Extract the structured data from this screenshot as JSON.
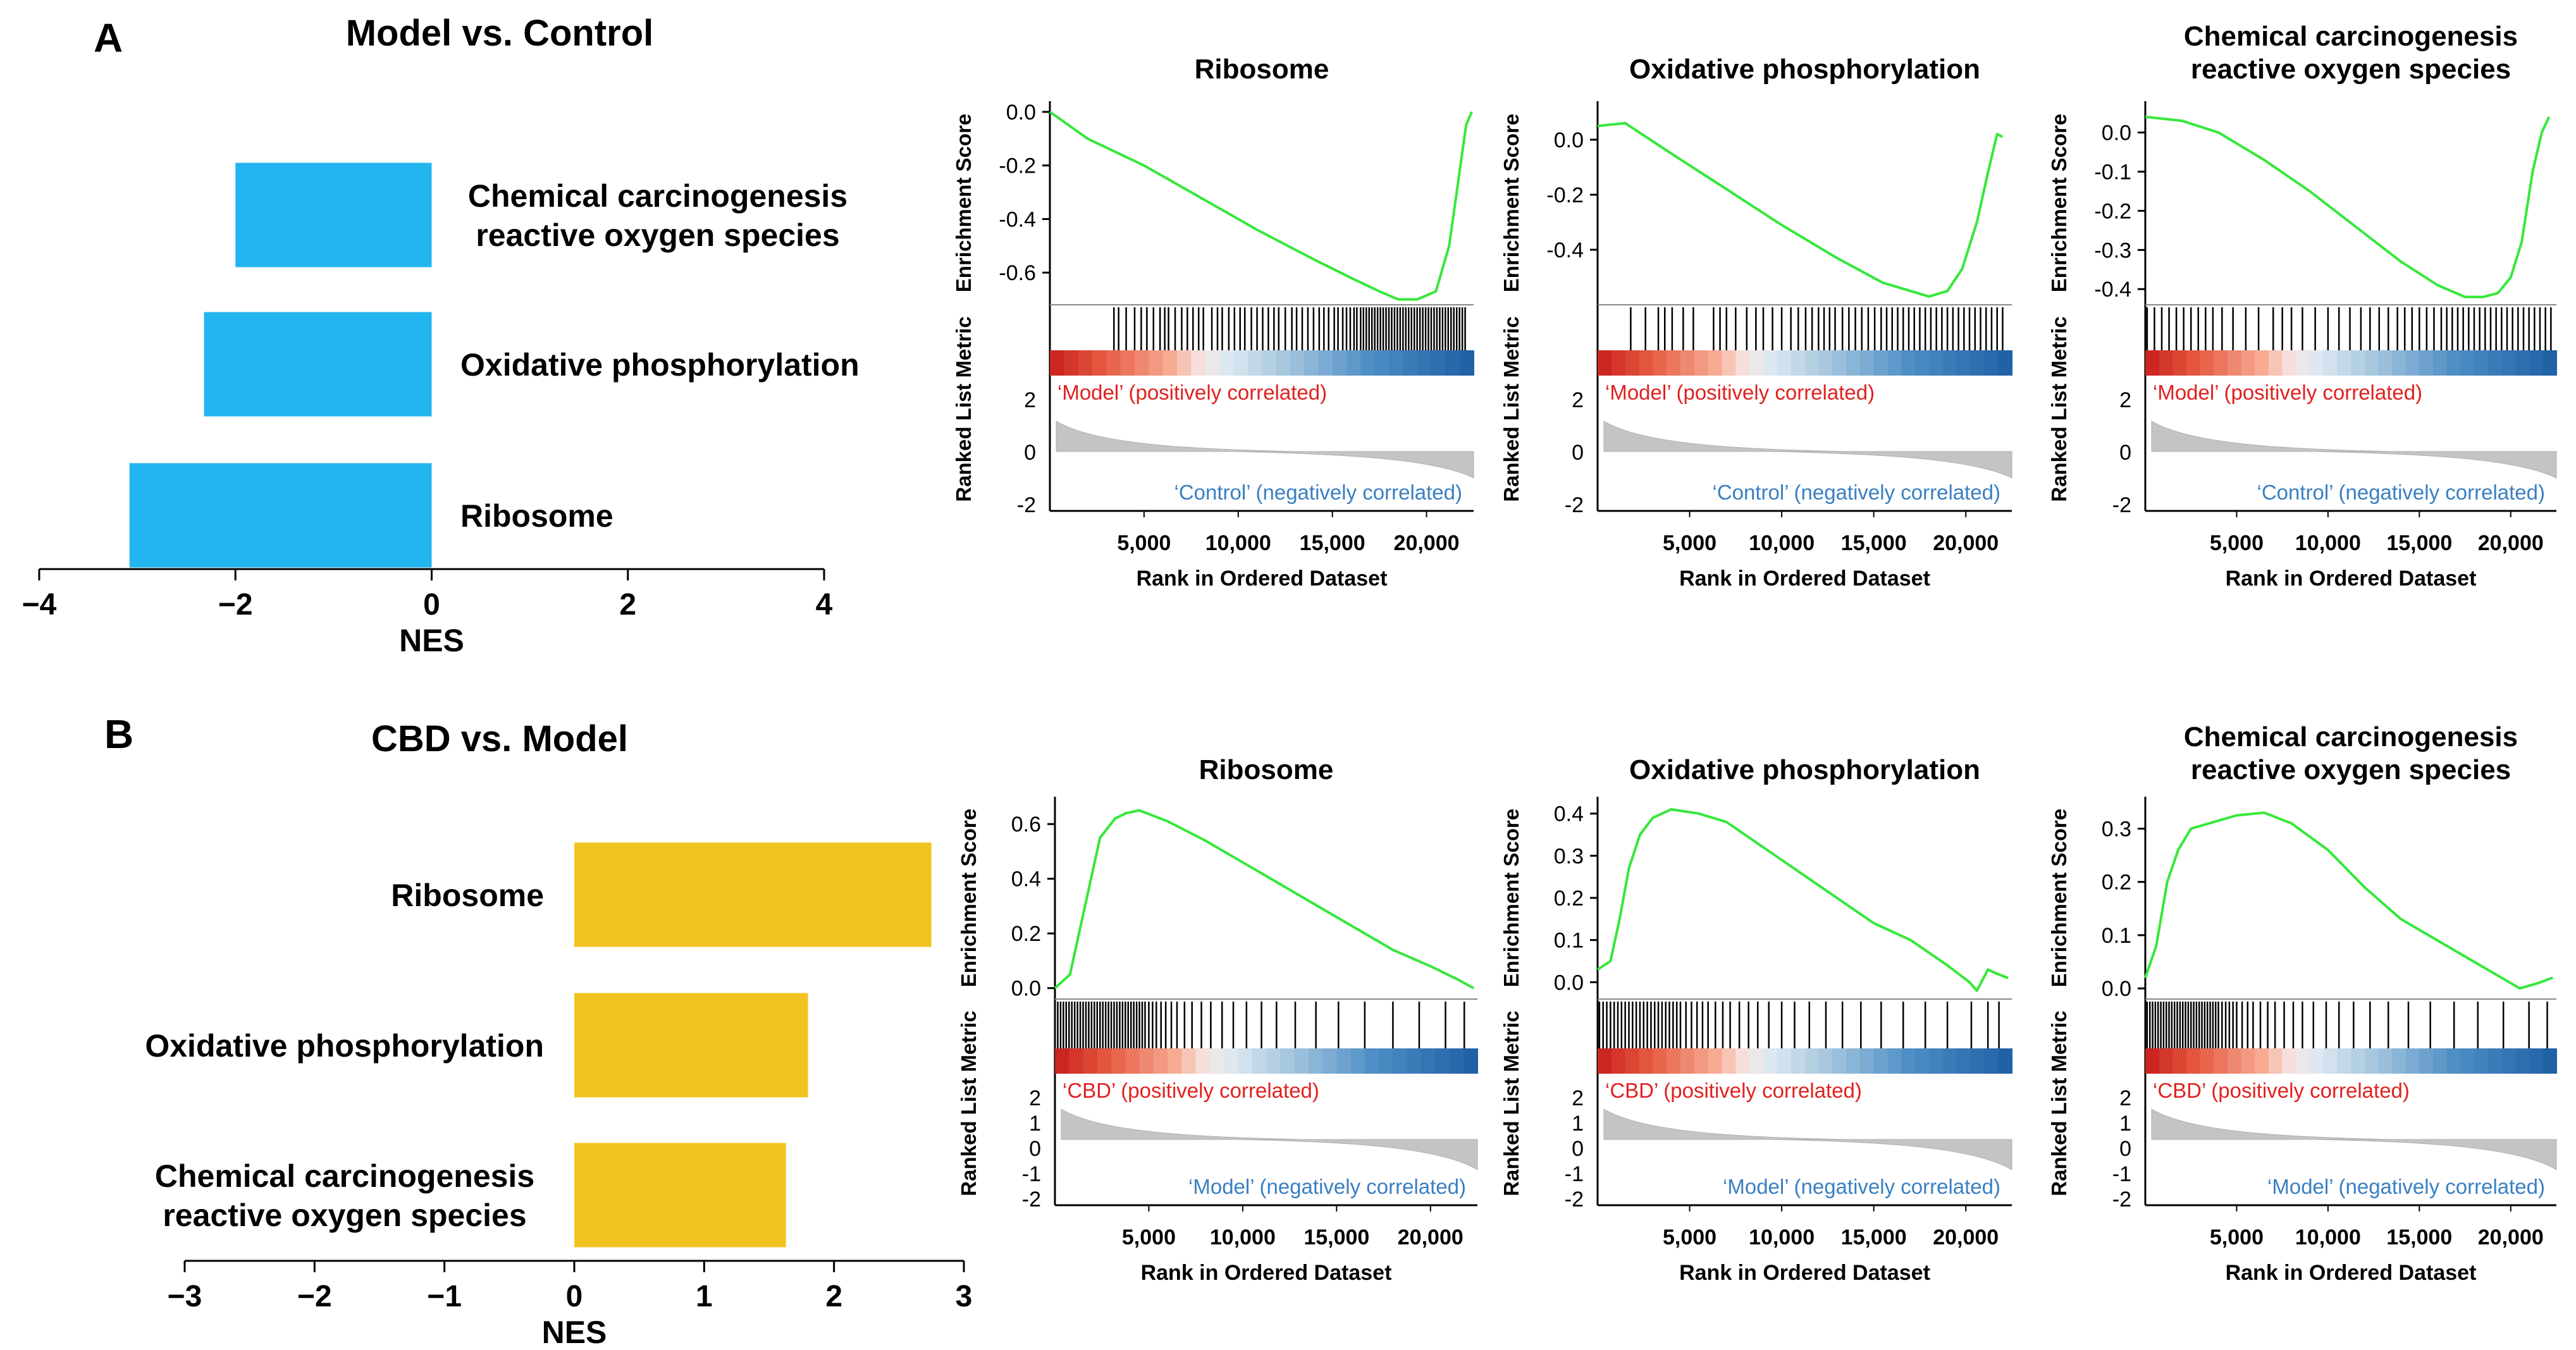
{
  "chart_data": [
    {
      "id": "A_bar",
      "panel_letter": "A",
      "type": "bar",
      "orientation": "horizontal",
      "title": "Model vs. Control",
      "xlabel": "NES",
      "xlim": [
        -4,
        4
      ],
      "xticks": [
        -4,
        -2,
        0,
        2,
        4
      ],
      "xtick_labels": [
        "−4",
        "−2",
        "0",
        "2",
        "4"
      ],
      "bar_color": "#23b5ef",
      "label_side": "right",
      "categories": [
        [
          "Chemical carcinogenesis",
          "reactive oxygen species"
        ],
        [
          "Oxidative phosphorylation"
        ],
        [
          "Ribosome"
        ]
      ],
      "values": [
        -2.0,
        -2.32,
        -3.08
      ]
    },
    {
      "id": "B_bar",
      "panel_letter": "B",
      "type": "bar",
      "orientation": "horizontal",
      "title": "CBD vs. Model",
      "xlabel": "NES",
      "xlim": [
        -3,
        3
      ],
      "xticks": [
        -3,
        -2,
        -1,
        0,
        1,
        2,
        3
      ],
      "xtick_labels": [
        "−3",
        "−2",
        "−1",
        "0",
        "1",
        "2",
        "3"
      ],
      "bar_color": "#f1c321",
      "label_side": "left",
      "categories": [
        [
          "Ribosome"
        ],
        [
          "Oxidative phosphorylation"
        ],
        [
          "Chemical carcinogenesis",
          "reactive oxygen species"
        ]
      ],
      "values": [
        2.75,
        1.8,
        1.63
      ]
    },
    {
      "id": "A_gsea_ribosome",
      "type": "line",
      "direction": "negative",
      "title": [
        "Ribosome"
      ],
      "ylabel": "Enrichment Score",
      "ylim": [
        -0.72,
        0.04
      ],
      "yticks": [
        0.0,
        -0.2,
        -0.4,
        -0.6
      ],
      "ytick_labels": [
        "0.0",
        "-0.2",
        "-0.4",
        "-0.6"
      ],
      "xlabel": "Rank in Ordered Dataset",
      "xlim": [
        0,
        22500
      ],
      "xticks": [
        5000,
        10000,
        15000,
        20000
      ],
      "xtick_labels": [
        "5,000",
        "10,000",
        "15,000",
        "20,000"
      ],
      "x": [
        0,
        2000,
        5000,
        8000,
        11000,
        14000,
        16000,
        17500,
        18500,
        19500,
        20500,
        21200,
        21700,
        22100,
        22400
      ],
      "y": [
        0.0,
        -0.1,
        -0.2,
        -0.32,
        -0.44,
        -0.55,
        -0.62,
        -0.67,
        -0.7,
        -0.7,
        -0.67,
        -0.5,
        -0.25,
        -0.05,
        0.0
      ],
      "hits": [
        3400,
        3650,
        4050,
        4500,
        4850,
        5150,
        5500,
        5850,
        6100,
        6300,
        6650,
        7000,
        7300,
        7600,
        7900,
        8150,
        8600,
        8900,
        9150,
        9500,
        9800,
        10100,
        10350,
        10700,
        11000,
        11300,
        11600,
        11900,
        12150,
        12500,
        12850,
        13100,
        13400,
        13700,
        14000,
        14300,
        14550,
        14800,
        15100,
        15300,
        15550,
        15750,
        15950,
        16150,
        16300,
        16500,
        16650,
        16800,
        16950,
        17100,
        17250,
        17400,
        17550,
        17700,
        17850,
        18000,
        18150,
        18300,
        18450,
        18600,
        18750,
        18900,
        19050,
        19200,
        19350,
        19500,
        19650,
        19800,
        19950,
        20100,
        20250,
        20400,
        20550,
        20700,
        20850,
        21000,
        21150,
        21300,
        21450,
        21600,
        21750,
        21900,
        22050
      ],
      "pos_label": "‘Model’ (positively correlated)",
      "neg_label": "‘Control’ (negatively correlated)",
      "metric_ylabel": "Ranked List Metric",
      "metric_yticks": [
        "2",
        "0",
        "-2"
      ]
    },
    {
      "id": "A_gsea_oxphos",
      "type": "line",
      "direction": "negative",
      "title": [
        "Oxidative phosphorylation"
      ],
      "ylabel": "Enrichment Score",
      "ylim": [
        -0.6,
        0.14
      ],
      "yticks": [
        0.0,
        -0.2,
        -0.4
      ],
      "ytick_labels": [
        "0.0",
        "-0.2",
        "-0.4"
      ],
      "xlabel": "Rank in Ordered Dataset",
      "xlim": [
        0,
        22500
      ],
      "xticks": [
        5000,
        10000,
        15000,
        20000
      ],
      "xtick_labels": [
        "5,000",
        "10,000",
        "15,000",
        "20,000"
      ],
      "x": [
        0,
        1500,
        4000,
        7000,
        10000,
        13000,
        15500,
        17000,
        18000,
        19000,
        19800,
        20600,
        21200,
        21700,
        22000
      ],
      "y": [
        0.05,
        0.06,
        -0.05,
        -0.18,
        -0.31,
        -0.43,
        -0.52,
        -0.55,
        -0.57,
        -0.55,
        -0.47,
        -0.3,
        -0.12,
        0.02,
        0.01
      ],
      "hits": [
        1800,
        2600,
        3300,
        3650,
        4050,
        4650,
        5200,
        6300,
        6650,
        7000,
        7500,
        8100,
        8600,
        9000,
        9500,
        10000,
        10500,
        10900,
        11300,
        11650,
        12000,
        12300,
        12600,
        12900,
        13300,
        13650,
        14000,
        14350,
        14700,
        15050,
        15400,
        15700,
        16000,
        16300,
        16600,
        16900,
        17200,
        17500,
        17800,
        18100,
        18400,
        18700,
        19000,
        19300,
        19600,
        19900,
        20200,
        20500,
        20800,
        21100,
        21400,
        21700,
        22000
      ],
      "pos_label": "‘Model’ (positively correlated)",
      "neg_label": "‘Control’ (negatively correlated)",
      "metric_ylabel": "Ranked List Metric",
      "metric_yticks": [
        "2",
        "0",
        "-2"
      ]
    },
    {
      "id": "A_gsea_ros",
      "type": "line",
      "direction": "negative",
      "title": [
        "Chemical carcinogenesis",
        "reactive oxygen species"
      ],
      "ylabel": "Enrichment Score",
      "ylim": [
        -0.44,
        0.08
      ],
      "yticks": [
        0.0,
        -0.1,
        -0.2,
        -0.3,
        -0.4
      ],
      "ytick_labels": [
        "0.0",
        "-0.1",
        "-0.2",
        "-0.3",
        "-0.4"
      ],
      "xlabel": "Rank in Ordered Dataset",
      "xlim": [
        0,
        22500
      ],
      "xticks": [
        5000,
        10000,
        15000,
        20000
      ],
      "xtick_labels": [
        "5,000",
        "10,000",
        "15,000",
        "20,000"
      ],
      "x": [
        0,
        2000,
        4000,
        6500,
        9000,
        11500,
        14000,
        16000,
        17500,
        18500,
        19300,
        20000,
        20600,
        21200,
        21700,
        22100
      ],
      "y": [
        0.04,
        0.03,
        0.0,
        -0.07,
        -0.15,
        -0.24,
        -0.33,
        -0.39,
        -0.42,
        -0.42,
        -0.41,
        -0.37,
        -0.28,
        -0.1,
        0.0,
        0.04
      ],
      "hits": [
        100,
        500,
        900,
        1300,
        1700,
        2100,
        2500,
        2900,
        3300,
        3700,
        4200,
        4800,
        5500,
        6200,
        7000,
        7500,
        8000,
        8600,
        9300,
        10000,
        10600,
        11200,
        11800,
        12300,
        12800,
        13300,
        13800,
        14200,
        14600,
        15000,
        15400,
        15800,
        16200,
        16500,
        16800,
        17100,
        17400,
        17700,
        18000,
        18300,
        18600,
        18900,
        19200,
        19500,
        19800,
        20100,
        20400,
        20700,
        21000,
        21300,
        21600,
        21900,
        22200
      ],
      "pos_label": "‘Model’ (positively correlated)",
      "neg_label": "‘Control’ (negatively correlated)",
      "metric_ylabel": "Ranked List Metric",
      "metric_yticks": [
        "2",
        "0",
        "-2"
      ]
    },
    {
      "id": "B_gsea_ribosome",
      "type": "line",
      "direction": "positive",
      "title": [
        "Ribosome"
      ],
      "ylabel": "Enrichment Score",
      "ylim": [
        -0.04,
        0.7
      ],
      "yticks": [
        0.0,
        0.2,
        0.4,
        0.6
      ],
      "ytick_labels": [
        "0.0",
        "0.2",
        "0.4",
        "0.6"
      ],
      "xlabel": "Rank in Ordered Dataset",
      "xlim": [
        0,
        22500
      ],
      "xticks": [
        5000,
        10000,
        15000,
        20000
      ],
      "xtick_labels": [
        "5,000",
        "10,000",
        "15,000",
        "20,000"
      ],
      "x": [
        0,
        800,
        1600,
        2400,
        3200,
        3800,
        4500,
        6000,
        8000,
        10000,
        12000,
        14000,
        16000,
        18000,
        20000,
        21500,
        22300
      ],
      "y": [
        0.0,
        0.05,
        0.3,
        0.55,
        0.62,
        0.64,
        0.65,
        0.61,
        0.54,
        0.46,
        0.38,
        0.3,
        0.22,
        0.14,
        0.08,
        0.03,
        0.0
      ],
      "hits": [
        150,
        300,
        450,
        600,
        750,
        900,
        1050,
        1200,
        1350,
        1500,
        1650,
        1800,
        1950,
        2100,
        2250,
        2400,
        2550,
        2700,
        2850,
        3000,
        3150,
        3300,
        3450,
        3600,
        3750,
        3900,
        4050,
        4200,
        4350,
        4500,
        4650,
        4800,
        5000,
        5200,
        5400,
        5650,
        5900,
        6200,
        6500,
        6900,
        7300,
        7800,
        8300,
        8900,
        9500,
        10200,
        11000,
        11800,
        12800,
        13900,
        15100,
        16500,
        18000,
        19400,
        20800,
        21800
      ],
      "pos_label": "‘CBD’ (positively correlated)",
      "neg_label": "‘Model’ (negatively correlated)",
      "metric_ylabel": "Ranked List Metric",
      "metric_yticks": [
        "2",
        "1",
        "0",
        "-1",
        "-2"
      ]
    },
    {
      "id": "B_gsea_oxphos",
      "type": "line",
      "direction": "positive",
      "title": [
        "Oxidative phosphorylation"
      ],
      "ylabel": "Enrichment Score",
      "ylim": [
        -0.04,
        0.44
      ],
      "yticks": [
        0.0,
        0.1,
        0.2,
        0.3,
        0.4
      ],
      "ytick_labels": [
        "0.0",
        "0.1",
        "0.2",
        "0.3",
        "0.4"
      ],
      "x": [
        0,
        700,
        1200,
        1700,
        2300,
        3000,
        4000,
        5500,
        7000,
        9000,
        11000,
        13000,
        15000,
        17000,
        19000,
        20200,
        20600,
        21200,
        21700,
        22300
      ],
      "y": [
        0.03,
        0.05,
        0.15,
        0.27,
        0.35,
        0.39,
        0.41,
        0.4,
        0.38,
        0.32,
        0.26,
        0.2,
        0.14,
        0.1,
        0.04,
        0.0,
        -0.02,
        0.03,
        0.02,
        0.01
      ],
      "xlabel": "Rank in Ordered Dataset",
      "xlim": [
        0,
        22500
      ],
      "xticks": [
        5000,
        10000,
        15000,
        20000
      ],
      "xtick_labels": [
        "5,000",
        "10,000",
        "15,000",
        "20,000"
      ],
      "hits": [
        100,
        300,
        500,
        700,
        900,
        1100,
        1300,
        1500,
        1700,
        1900,
        2100,
        2300,
        2500,
        2700,
        2900,
        3100,
        3300,
        3500,
        3700,
        3900,
        4100,
        4300,
        4500,
        4800,
        5100,
        5400,
        5700,
        6000,
        6400,
        6800,
        7200,
        7700,
        8200,
        8700,
        9300,
        10000,
        10700,
        11500,
        12400,
        13300,
        14300,
        15400,
        16600,
        17800,
        19000,
        20300,
        21200,
        21800
      ],
      "pos_label": "‘CBD’ (positively correlated)",
      "neg_label": "‘Model’ (negatively correlated)",
      "metric_ylabel": "Ranked List Metric",
      "metric_yticks": [
        "2",
        "1",
        "0",
        "-1",
        "-2"
      ]
    },
    {
      "id": "B_gsea_ros",
      "type": "line",
      "direction": "positive",
      "title": [
        "Chemical carcinogenesis",
        "reactive oxygen species"
      ],
      "ylabel": "Enrichment Score",
      "ylim": [
        -0.02,
        0.36
      ],
      "yticks": [
        0.0,
        0.1,
        0.2,
        0.3
      ],
      "ytick_labels": [
        "0.0",
        "0.1",
        "0.2",
        "0.3"
      ],
      "xlabel": "Rank in Ordered Dataset",
      "xlim": [
        0,
        22500
      ],
      "xticks": [
        5000,
        10000,
        15000,
        20000
      ],
      "xtick_labels": [
        "5,000",
        "10,000",
        "15,000",
        "20,000"
      ],
      "x": [
        0,
        600,
        1200,
        1800,
        2500,
        3500,
        5000,
        6500,
        8000,
        10000,
        12000,
        14000,
        16000,
        18000,
        19500,
        20500,
        21500,
        22300
      ],
      "y": [
        0.02,
        0.08,
        0.2,
        0.26,
        0.3,
        0.31,
        0.325,
        0.33,
        0.31,
        0.26,
        0.19,
        0.13,
        0.09,
        0.05,
        0.02,
        0.0,
        0.01,
        0.02
      ],
      "hits": [
        100,
        250,
        400,
        550,
        700,
        850,
        1000,
        1150,
        1300,
        1450,
        1600,
        1750,
        1900,
        2050,
        2200,
        2350,
        2500,
        2650,
        2800,
        2950,
        3100,
        3250,
        3400,
        3550,
        3700,
        3850,
        4000,
        4200,
        4400,
        4600,
        4800,
        5000,
        5300,
        5600,
        5900,
        6300,
        6700,
        7100,
        7600,
        8100,
        8600,
        9200,
        9900,
        10600,
        11400,
        12300,
        13300,
        14400,
        15600,
        16900,
        18200,
        19600,
        21000,
        22000
      ],
      "pos_label": "‘CBD’ (positively correlated)",
      "neg_label": "‘Model’ (negatively correlated)",
      "metric_ylabel": "Ranked List Metric",
      "metric_yticks": [
        "2",
        "1",
        "0",
        "-1",
        "-2"
      ]
    }
  ]
}
